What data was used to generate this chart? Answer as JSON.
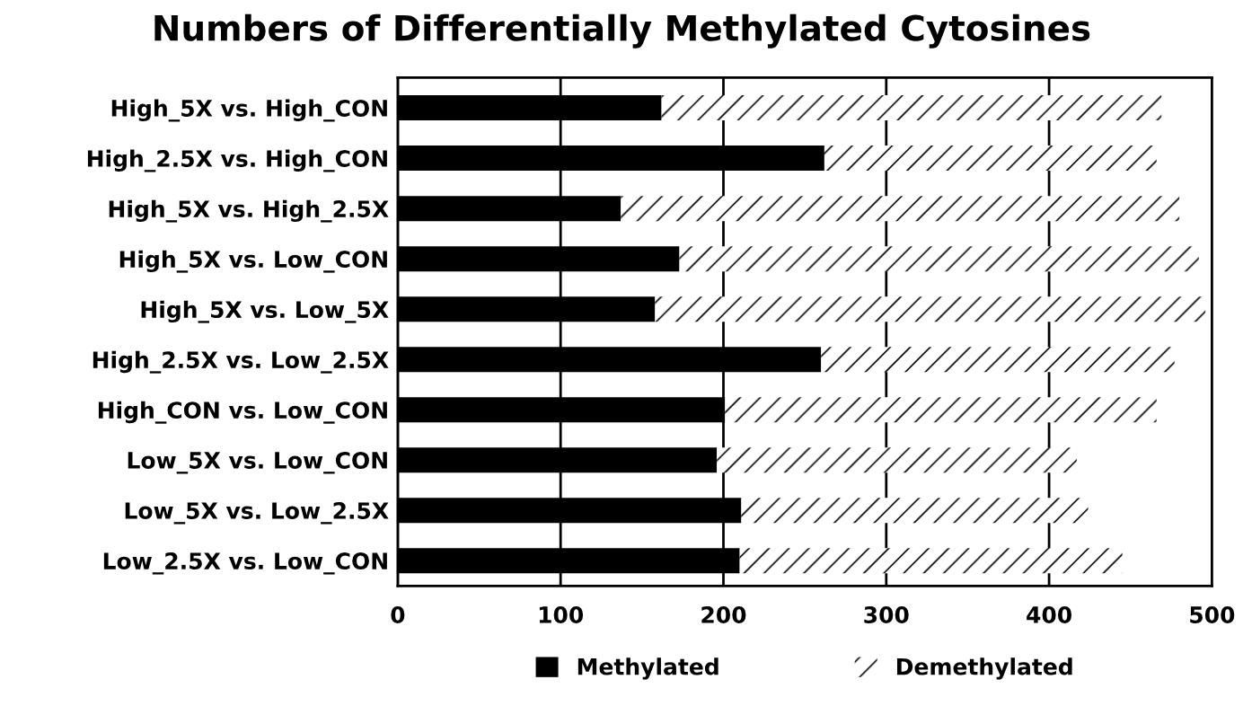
{
  "chart_data": {
    "type": "bar",
    "orientation": "horizontal",
    "stacked": true,
    "title": "Numbers of Differentially Methylated Cytosines",
    "categories": [
      "High_5X vs. High_CON",
      "High_2.5X vs. High_CON",
      "High_5X vs. High_2.5X",
      "High_5X vs. Low_CON",
      "High_5X vs. Low_5X",
      "High_2.5X vs. Low_2.5X",
      "High_CON vs. Low_CON",
      "Low_5X vs. Low_CON",
      "Low_5X vs. Low_2.5X",
      "Low_2.5X vs. Low_CON"
    ],
    "series": [
      {
        "name": "Methylated",
        "color": "#000000",
        "values": [
          162,
          262,
          137,
          173,
          158,
          260,
          201,
          196,
          211,
          210
        ]
      },
      {
        "name": "Demethylated",
        "color": "#ffffff",
        "values": [
          307,
          204,
          343,
          319,
          338,
          217,
          265,
          221,
          213,
          235
        ]
      }
    ],
    "xlim": [
      0,
      500
    ],
    "xticks": [
      0,
      100,
      200,
      300,
      400,
      500
    ],
    "grid": "x",
    "legend": "bottom"
  }
}
